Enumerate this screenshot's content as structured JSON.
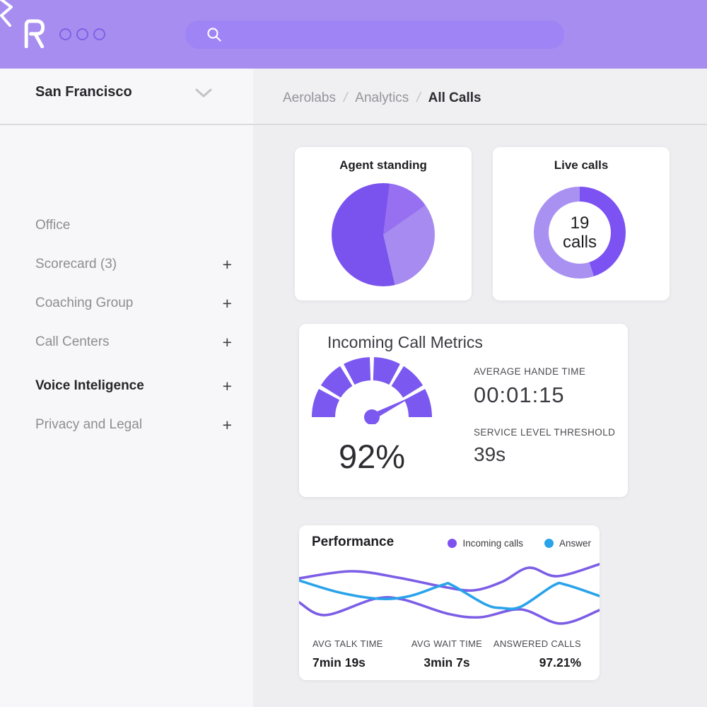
{
  "header": {
    "logo_text": "R"
  },
  "sidebar": {
    "location": "San Francisco",
    "items": [
      {
        "label": "Office",
        "suffix": ""
      },
      {
        "label": "Scorecard (3)",
        "suffix": "+"
      },
      {
        "label": "Coaching Group",
        "suffix": "+"
      },
      {
        "label": "Call Centers",
        "suffix": "+"
      },
      {
        "label": "Voice Inteligence",
        "suffix": "+",
        "active": true
      },
      {
        "label": "Privacy and Legal",
        "suffix": "+"
      }
    ]
  },
  "breadcrumb": {
    "items": [
      "Aerolabs",
      "Analytics",
      "All Calls"
    ],
    "separator": "/"
  },
  "chart_data": [
    {
      "id": "agent-standing",
      "type": "pie",
      "title": "Agent standing",
      "slices": [
        {
          "name": "dark-purple",
          "color": "#7a53ee",
          "share_pct": 55.6,
          "from_deg": 167,
          "to_deg": 367
        },
        {
          "name": "medium-purple",
          "color": "#9770f2",
          "share_pct": 13.3,
          "from_deg": 7,
          "to_deg": 55
        },
        {
          "name": "light-purple",
          "color": "#a78bf0",
          "share_pct": 31.1,
          "from_deg": 55,
          "to_deg": 167
        }
      ]
    },
    {
      "id": "live-calls",
      "type": "donut",
      "title": "Live calls",
      "center_value": "19",
      "center_unit": "calls",
      "segments": [
        {
          "name": "active",
          "color": "#7c52f2",
          "from_deg": 0,
          "to_deg": 162
        },
        {
          "name": "remaining",
          "color": "#a991f2",
          "from_deg": 162,
          "to_deg": 360
        }
      ]
    },
    {
      "id": "incoming-call-metrics",
      "type": "gauge",
      "title": "Incoming Call Metrics",
      "value_label": "92%",
      "value_pct": 92,
      "segment_count": 6,
      "segment_gap_deg": 4,
      "needle_deg_above_horizontal": 27,
      "color": "#7b58f0",
      "metrics": [
        {
          "label": "AVERAGE HANDE TIME",
          "value": "00:01:15"
        },
        {
          "label": "SERVICE LEVEL THRESHOLD",
          "value": "39s"
        }
      ]
    },
    {
      "id": "performance",
      "type": "line",
      "title": "Performance",
      "legend": [
        {
          "label": "Incoming calls",
          "color": "#7e52f0"
        },
        {
          "label": "Answer",
          "color": "#29a3ea"
        }
      ],
      "series": [
        {
          "name": "incoming-calls-a",
          "color": "#7c5ee6",
          "points": [
            [
              0,
              28
            ],
            [
              74,
              18
            ],
            [
              140,
              27
            ],
            [
              204,
              40
            ],
            [
              247,
              45
            ],
            [
              287,
              33
            ],
            [
              325,
              13
            ],
            [
              365,
              25
            ],
            [
              425,
              8
            ]
          ]
        },
        {
          "name": "incoming-calls-b",
          "color": "#7c5ee6",
          "points": [
            [
              0,
              62
            ],
            [
              37,
              80
            ],
            [
              107,
              57
            ],
            [
              147,
              58
            ],
            [
              210,
              78
            ],
            [
              257,
              83
            ],
            [
              314,
              72
            ],
            [
              370,
              92
            ],
            [
              425,
              73
            ]
          ]
        },
        {
          "name": "answered",
          "color": "#29a3ea",
          "points": [
            [
              0,
              31
            ],
            [
              57,
              48
            ],
            [
              114,
              57
            ],
            [
              157,
              53
            ],
            [
              204,
              37
            ],
            [
              217,
              38
            ],
            [
              264,
              65
            ],
            [
              287,
              70
            ],
            [
              314,
              68
            ],
            [
              360,
              38
            ],
            [
              377,
              37
            ],
            [
              425,
              53
            ]
          ]
        }
      ],
      "stats": [
        {
          "label": "AVG TALK TIME",
          "value": "7min 19s"
        },
        {
          "label": "AVG WAIT TIME",
          "value": "3min 7s"
        },
        {
          "label": "ANSWERED CALLS",
          "value": "97.21%"
        }
      ]
    }
  ]
}
